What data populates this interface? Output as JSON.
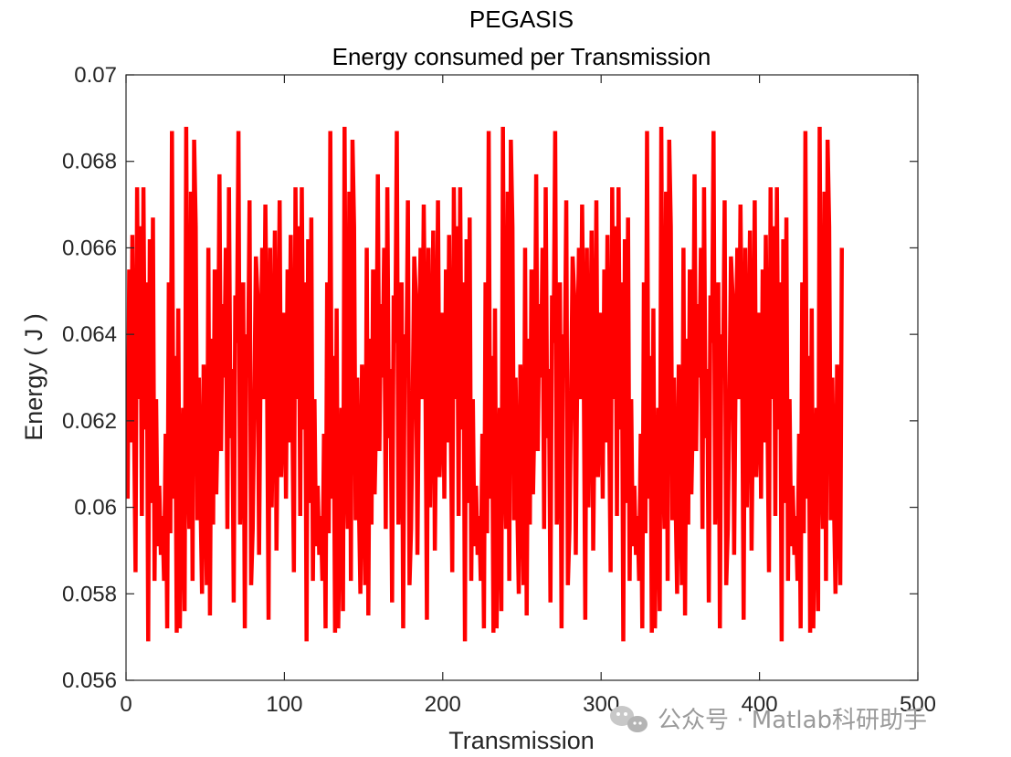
{
  "chart_data": {
    "type": "line",
    "title": "PEGASIS",
    "subtitle": "Energy consumed per Transmission",
    "xlabel": "Transmission",
    "ylabel": "Energy ( J )",
    "xlim": [
      0,
      500
    ],
    "ylim": [
      0.056,
      0.07
    ],
    "xticks": [
      0,
      100,
      200,
      300,
      400,
      500
    ],
    "yticks": [
      0.056,
      0.058,
      0.06,
      0.062,
      0.064,
      0.066,
      0.068,
      0.07
    ],
    "xtick_labels": [
      "0",
      "100",
      "200",
      "300",
      "400",
      "500"
    ],
    "ytick_labels": [
      "0.056",
      "0.058",
      "0.06",
      "0.062",
      "0.064",
      "0.066",
      "0.068",
      "0.07"
    ],
    "grid": false,
    "series": [
      {
        "color": "#ff0000",
        "line_width": "thick",
        "x": [
          1,
          2,
          3,
          4,
          5,
          6,
          7,
          8,
          9,
          10,
          11,
          12,
          13,
          14,
          15,
          16,
          17,
          18,
          19,
          20,
          21,
          22,
          23,
          24,
          25,
          26,
          27,
          28,
          29,
          30,
          31,
          32,
          33,
          34,
          35,
          36,
          37,
          38,
          39,
          40,
          41,
          42,
          43,
          44,
          45,
          46,
          47,
          48,
          49,
          50,
          51,
          52,
          53,
          54,
          55,
          56,
          57,
          58,
          59,
          60,
          61,
          62,
          63,
          64,
          65,
          66,
          67,
          68,
          69,
          70,
          71,
          72,
          73,
          74,
          75,
          76,
          77,
          78,
          79,
          80,
          81,
          82,
          83,
          84,
          85,
          86,
          87,
          88,
          89,
          90,
          91,
          92,
          93,
          94,
          95,
          96,
          97,
          98,
          99,
          100
        ],
        "y": [
          0.0602,
          0.0655,
          0.0615,
          0.0663,
          0.0622,
          0.0585,
          0.0674,
          0.0625,
          0.0665,
          0.0598,
          0.0674,
          0.0618,
          0.0652,
          0.0569,
          0.0662,
          0.0601,
          0.0667,
          0.0583,
          0.0625,
          0.0591,
          0.0605,
          0.0589,
          0.0598,
          0.0583,
          0.0617,
          0.0572,
          0.0652,
          0.0594,
          0.0687,
          0.0602,
          0.0635,
          0.0571,
          0.0646,
          0.0572,
          0.0603,
          0.0623,
          0.0576,
          0.0688,
          0.0612,
          0.0595,
          0.0673,
          0.0583,
          0.0685,
          0.0665,
          0.0597,
          0.063,
          0.0602,
          0.058,
          0.0633,
          0.0608,
          0.0582,
          0.066,
          0.0575,
          0.0639,
          0.0596,
          0.0655,
          0.0603,
          0.0623,
          0.0677,
          0.0613,
          0.0647,
          0.063,
          0.066,
          0.0595,
          0.0674,
          0.0616,
          0.0632,
          0.0578,
          0.0649,
          0.0638,
          0.0687,
          0.0596,
          0.0614,
          0.0652,
          0.0572,
          0.064,
          0.063,
          0.0671,
          0.0582,
          0.0595,
          0.0624,
          0.0658,
          0.0649,
          0.0589,
          0.0635,
          0.066,
          0.0625,
          0.067,
          0.0633,
          0.0574,
          0.066,
          0.06,
          0.0631,
          0.0664,
          0.059,
          0.0627,
          0.0671,
          0.0607,
          0.0621,
          0.0645
        ],
        "repeat_period": 100,
        "repeat_count": 4.52
      }
    ]
  },
  "watermark": {
    "icon": "wechat-icon",
    "text": "公众号 · Matlab科研助手"
  }
}
